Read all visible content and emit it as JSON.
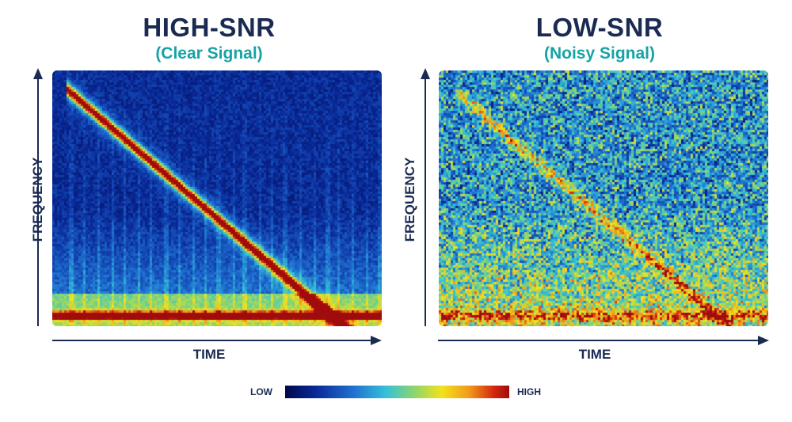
{
  "panels": [
    {
      "title": "HIGH-SNR",
      "subtitle": "(Clear Signal)",
      "ylabel": "FREQUENCY",
      "xlabel": "TIME",
      "noise_level": "low"
    },
    {
      "title": "LOW-SNR",
      "subtitle": "(Noisy Signal)",
      "ylabel": "FREQUENCY",
      "xlabel": "TIME",
      "noise_level": "high"
    }
  ],
  "legend": {
    "low_label": "LOW",
    "high_label": "HIGH"
  },
  "colors": {
    "title": "#1a2a52",
    "subtitle": "#16a3a6",
    "axis": "#1a2a52"
  }
}
